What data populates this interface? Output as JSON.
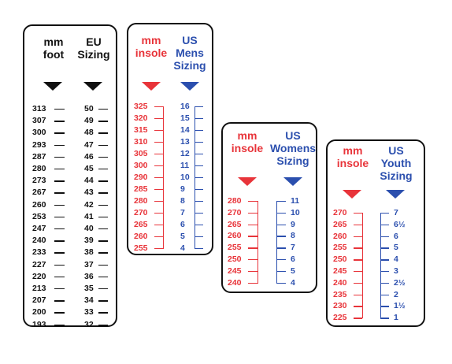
{
  "colors": {
    "black": "#111111",
    "red": "#e8343a",
    "blue": "#2b4fae"
  },
  "eu_chart": {
    "left_header": [
      "mm",
      "foot"
    ],
    "right_header": [
      "EU",
      "Sizing"
    ],
    "mm": [
      "313",
      "307",
      "300",
      "293",
      "287",
      "280",
      "273",
      "267",
      "260",
      "253",
      "247",
      "240",
      "233",
      "227",
      "220",
      "213",
      "207",
      "200",
      "193"
    ],
    "eu": [
      "50",
      "49",
      "48",
      "47",
      "46",
      "45",
      "44",
      "43",
      "42",
      "41",
      "40",
      "39",
      "38",
      "37",
      "36",
      "35",
      "34",
      "33",
      "32"
    ]
  },
  "mens_chart": {
    "left_header": [
      "mm",
      "insole"
    ],
    "right_header": [
      "US",
      "Mens",
      "Sizing"
    ],
    "mm": [
      "325",
      "320",
      "315",
      "310",
      "305",
      "300",
      "290",
      "285",
      "280",
      "270",
      "265",
      "260",
      "255"
    ],
    "us": [
      "16",
      "15",
      "14",
      "13",
      "12",
      "11",
      "10",
      "9",
      "8",
      "7",
      "6",
      "5",
      "4"
    ]
  },
  "womens_chart": {
    "left_header": [
      "mm",
      "insole"
    ],
    "right_header": [
      "US",
      "Womens",
      "Sizing"
    ],
    "mm": [
      "280",
      "270",
      "265",
      "260",
      "255",
      "250",
      "245",
      "240"
    ],
    "us": [
      "11",
      "10",
      "9",
      "8",
      "7",
      "6",
      "5",
      "4"
    ]
  },
  "youth_chart": {
    "left_header": [
      "mm",
      "insole"
    ],
    "right_header": [
      "US",
      "Youth",
      "Sizing"
    ],
    "mm": [
      "270",
      "265",
      "260",
      "255",
      "250",
      "245",
      "240",
      "235",
      "230",
      "225"
    ],
    "us": [
      "7",
      "6½",
      "6",
      "5",
      "4",
      "3",
      "2½",
      "2",
      "1½",
      "1"
    ]
  }
}
